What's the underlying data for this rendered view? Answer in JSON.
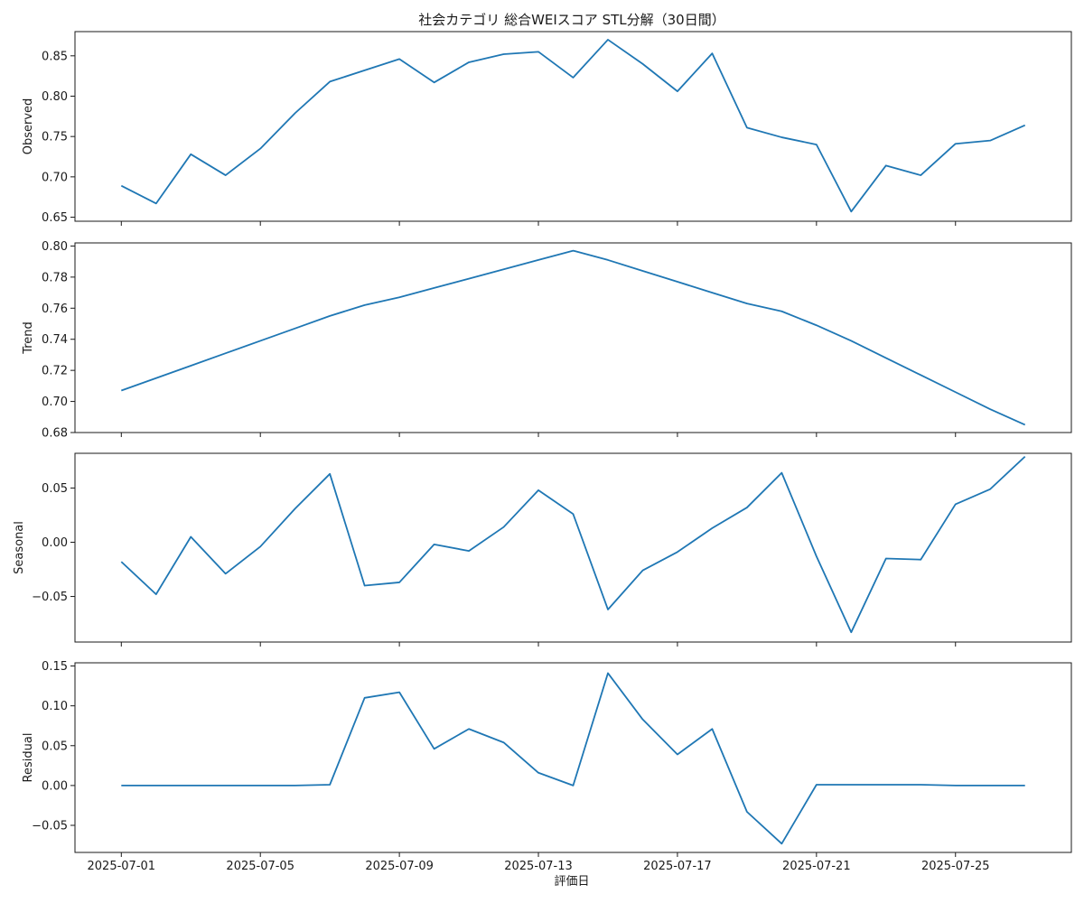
{
  "chart_data": {
    "type": "line",
    "title": "社会カテゴリ 総合WEIスコア STL分解（30日間）",
    "xlabel": "評価日",
    "x": [
      "2025-07-01",
      "2025-07-02",
      "2025-07-03",
      "2025-07-04",
      "2025-07-05",
      "2025-07-06",
      "2025-07-07",
      "2025-07-08",
      "2025-07-09",
      "2025-07-10",
      "2025-07-11",
      "2025-07-12",
      "2025-07-13",
      "2025-07-14",
      "2025-07-15",
      "2025-07-16",
      "2025-07-17",
      "2025-07-18",
      "2025-07-19",
      "2025-07-20",
      "2025-07-21",
      "2025-07-22",
      "2025-07-23",
      "2025-07-24",
      "2025-07-25",
      "2025-07-26",
      "2025-07-27"
    ],
    "x_ticks": [
      "2025-07-01",
      "2025-07-05",
      "2025-07-09",
      "2025-07-13",
      "2025-07-17",
      "2025-07-21",
      "2025-07-25"
    ],
    "xlim": [
      "2025-06-29T16:00",
      "2025-07-28T08:00"
    ],
    "grid": false,
    "color": "#1f77b4",
    "panels": [
      {
        "ylabel": "Observed",
        "ylim": [
          0.645,
          0.88
        ],
        "yticks": [
          "0.65",
          "0.70",
          "0.75",
          "0.80",
          "0.85"
        ],
        "values": [
          0.689,
          0.667,
          0.728,
          0.702,
          0.735,
          0.779,
          0.818,
          0.832,
          0.846,
          0.817,
          0.842,
          0.852,
          0.855,
          0.823,
          0.87,
          0.84,
          0.806,
          0.853,
          0.761,
          0.749,
          0.74,
          0.657,
          0.714,
          0.702,
          0.741,
          0.745,
          0.764
        ]
      },
      {
        "ylabel": "Trend",
        "ylim": [
          0.68,
          0.802
        ],
        "yticks": [
          "0.68",
          "0.70",
          "0.72",
          "0.74",
          "0.76",
          "0.78",
          "0.80"
        ],
        "values": [
          0.707,
          0.715,
          0.723,
          0.731,
          0.739,
          0.747,
          0.755,
          0.762,
          0.767,
          0.773,
          0.779,
          0.785,
          0.791,
          0.797,
          0.791,
          0.784,
          0.777,
          0.77,
          0.763,
          0.758,
          0.749,
          0.739,
          0.728,
          0.717,
          0.706,
          0.695,
          0.685
        ]
      },
      {
        "ylabel": "Seasonal",
        "ylim": [
          -0.092,
          0.082
        ],
        "yticks": [
          "0.05",
          "0.00",
          "−0.05"
        ],
        "ytick_values": [
          0.05,
          0.0,
          -0.05
        ],
        "values": [
          -0.018,
          -0.048,
          0.005,
          -0.029,
          -0.004,
          0.031,
          0.063,
          -0.04,
          -0.037,
          -0.002,
          -0.008,
          0.014,
          0.048,
          0.026,
          -0.062,
          -0.026,
          -0.009,
          0.013,
          0.032,
          0.064,
          -0.013,
          -0.083,
          -0.015,
          -0.016,
          0.035,
          0.049,
          0.079
        ]
      },
      {
        "ylabel": "Residual",
        "ylim": [
          -0.084,
          0.154
        ],
        "yticks": [
          "0.15",
          "0.10",
          "0.05",
          "0.00",
          "−0.05"
        ],
        "ytick_values": [
          0.15,
          0.1,
          0.05,
          0.0,
          -0.05
        ],
        "values": [
          0.0,
          0.0,
          0.0,
          0.0,
          0.0,
          0.0,
          0.001,
          0.11,
          0.117,
          0.046,
          0.071,
          0.054,
          0.016,
          0.0,
          0.141,
          0.083,
          0.039,
          0.071,
          -0.033,
          -0.073,
          0.001,
          0.001,
          0.001,
          0.001,
          0.0,
          0.0,
          0.0
        ]
      }
    ]
  }
}
